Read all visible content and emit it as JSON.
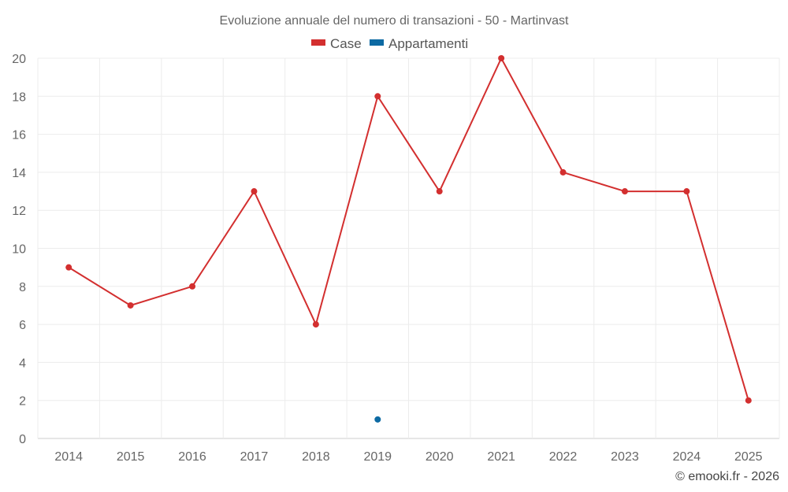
{
  "chart_data": {
    "type": "line",
    "title": "Evoluzione annuale del numero di transazioni - 50 - Martinvast",
    "categories": [
      "2014",
      "2015",
      "2016",
      "2017",
      "2018",
      "2019",
      "2020",
      "2021",
      "2022",
      "2023",
      "2024",
      "2025"
    ],
    "series": [
      {
        "name": "Case",
        "color": "#d32f2f",
        "values": [
          9,
          7,
          8,
          13,
          6,
          18,
          13,
          20,
          14,
          13,
          13,
          2
        ]
      },
      {
        "name": "Appartamenti",
        "color": "#0d6aa3",
        "values": [
          null,
          null,
          null,
          null,
          null,
          1,
          null,
          null,
          null,
          null,
          null,
          null
        ]
      }
    ],
    "ylim": [
      0,
      20
    ],
    "yticks": [
      0,
      2,
      4,
      6,
      8,
      10,
      12,
      14,
      16,
      18,
      20
    ],
    "xlabel": "",
    "ylabel": "",
    "grid": true,
    "legend_position": "top-center"
  },
  "credit": "© emooki.fr - 2026"
}
